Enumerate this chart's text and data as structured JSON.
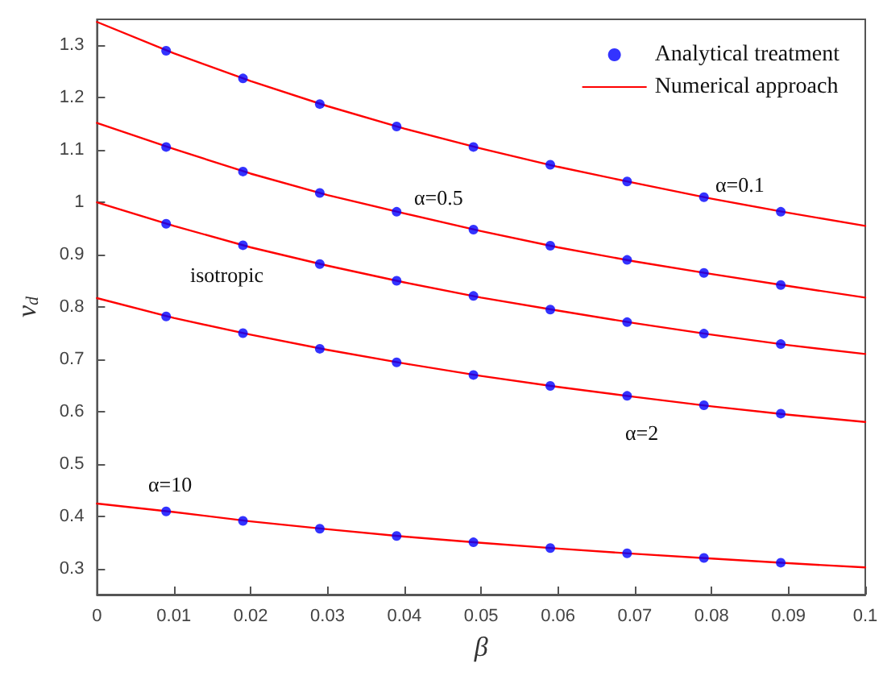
{
  "chart_data": {
    "type": "line",
    "xlabel": "β",
    "ylabel": "v$_{d}$",
    "xlim": [
      0,
      0.1
    ],
    "xticks": [
      0,
      0.01,
      0.02,
      0.03,
      0.04,
      0.05,
      0.06,
      0.07,
      0.08,
      0.09,
      0.1
    ],
    "ylim": [
      0.25,
      1.35
    ],
    "yticks": [
      0.3,
      0.4,
      0.5,
      0.6,
      0.7,
      0.8,
      0.9,
      1,
      1.1,
      1.2,
      1.3
    ],
    "grid": false,
    "legend": "top right",
    "series": [
      {
        "name": "Analytical treatment",
        "type": "scatter",
        "marker": "circle",
        "color": "#0000ff",
        "x": [
          0.009,
          0.019,
          0.029,
          0.039,
          0.049,
          0.059,
          0.069,
          0.079,
          0.089
        ],
        "values": [
          1.29,
          1.237,
          1.188,
          1.145,
          1.106,
          1.072,
          1.04,
          1.01,
          0.982
        ]
      },
      {
        "type": "scatter",
        "marker": "circle",
        "color": "#0000ff",
        "x": [
          0.009,
          0.019,
          0.029,
          0.039,
          0.049,
          0.059,
          0.069,
          0.079,
          0.089
        ],
        "values": [
          1.106,
          1.059,
          1.018,
          0.982,
          0.948,
          0.917,
          0.89,
          0.865,
          0.842
        ]
      },
      {
        "type": "scatter",
        "marker": "circle",
        "color": "#0000ff",
        "x": [
          0.009,
          0.019,
          0.029,
          0.039,
          0.049,
          0.059,
          0.069,
          0.079,
          0.089
        ],
        "values": [
          0.959,
          0.918,
          0.882,
          0.85,
          0.821,
          0.795,
          0.771,
          0.749,
          0.729
        ]
      },
      {
        "type": "scatter",
        "marker": "circle",
        "color": "#0000ff",
        "x": [
          0.009,
          0.019,
          0.029,
          0.039,
          0.049,
          0.059,
          0.069,
          0.079,
          0.089
        ],
        "values": [
          0.782,
          0.75,
          0.72,
          0.694,
          0.67,
          0.649,
          0.63,
          0.612,
          0.596
        ]
      },
      {
        "type": "scatter",
        "marker": "circle",
        "color": "#0000ff",
        "x": [
          0.009,
          0.019,
          0.029,
          0.039,
          0.049,
          0.059,
          0.069,
          0.079,
          0.089
        ],
        "values": [
          0.409,
          0.391,
          0.376,
          0.362,
          0.35,
          0.339,
          0.329,
          0.32,
          0.311
        ]
      },
      {
        "name": "Numerical approach",
        "marker": "none",
        "line_style": "solid",
        "color": "#ff0000",
        "x": [
          0,
          0.01,
          0.02,
          0.03,
          0.04,
          0.05,
          0.06,
          0.07,
          0.08,
          0.09,
          0.1
        ],
        "values": [
          1.345,
          1.285,
          1.232,
          1.184,
          1.141,
          1.103,
          1.068,
          1.037,
          1.007,
          0.98,
          0.955
        ]
      },
      {
        "type": "line",
        "marker": "none",
        "line_style": "solid",
        "color": "#ff0000",
        "x": [
          0,
          0.01,
          0.02,
          0.03,
          0.04,
          0.05,
          0.06,
          0.07,
          0.08,
          0.09,
          0.1
        ],
        "values": [
          1.152,
          1.102,
          1.055,
          1.014,
          0.979,
          0.945,
          0.914,
          0.887,
          0.863,
          0.84,
          0.818
        ]
      },
      {
        "type": "line",
        "marker": "none",
        "line_style": "solid",
        "color": "#ff0000",
        "x": [
          0,
          0.01,
          0.02,
          0.03,
          0.04,
          0.05,
          0.06,
          0.07,
          0.08,
          0.09,
          0.1
        ],
        "values": [
          1.0,
          0.955,
          0.914,
          0.879,
          0.847,
          0.818,
          0.793,
          0.769,
          0.747,
          0.727,
          0.71
        ]
      },
      {
        "type": "line",
        "marker": "none",
        "line_style": "solid",
        "color": "#ff0000",
        "x": [
          0,
          0.01,
          0.02,
          0.03,
          0.04,
          0.05,
          0.06,
          0.07,
          0.08,
          0.09,
          0.1
        ],
        "values": [
          0.817,
          0.779,
          0.747,
          0.718,
          0.692,
          0.668,
          0.647,
          0.628,
          0.61,
          0.594,
          0.58
        ]
      },
      {
        "type": "line",
        "marker": "none",
        "line_style": "solid",
        "color": "#ff0000",
        "x": [
          0,
          0.01,
          0.02,
          0.03,
          0.04,
          0.05,
          0.06,
          0.07,
          0.08,
          0.09,
          0.1
        ],
        "values": [
          0.424,
          0.408,
          0.39,
          0.375,
          0.361,
          0.349,
          0.338,
          0.328,
          0.319,
          0.31,
          0.302
        ]
      }
    ],
    "annotations": [
      "α=0.1",
      "α=0.5",
      "isotropic",
      "α=2",
      "α=10"
    ]
  }
}
